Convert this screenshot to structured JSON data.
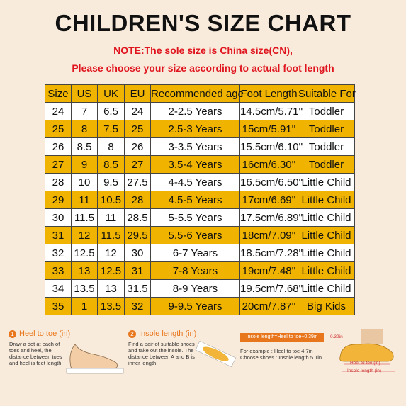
{
  "header": {
    "title": "CHILDREN'S SIZE CHART",
    "notes": [
      "NOTE:The sole size is China size(CN),",
      "Please choose your size according to actual foot length"
    ]
  },
  "table": {
    "columns": [
      "Size",
      "US",
      "UK",
      "EU",
      "Recommended age",
      "Foot Length",
      "Suitable For"
    ],
    "rows": [
      [
        "24",
        "7",
        "6.5",
        "24",
        "2-2.5 Years",
        "14.5cm/5.71''",
        "Toddler"
      ],
      [
        "25",
        "8",
        "7.5",
        "25",
        "2.5-3 Years",
        "15cm/5.91''",
        "Toddler"
      ],
      [
        "26",
        "8.5",
        "8",
        "26",
        "3-3.5 Years",
        "15.5cm/6.10''",
        "Toddler"
      ],
      [
        "27",
        "9",
        "8.5",
        "27",
        "3.5-4 Years",
        "16cm/6.30''",
        "Toddler"
      ],
      [
        "28",
        "10",
        "9.5",
        "27.5",
        "4-4.5 Years",
        "16.5cm/6.50''",
        "Little Child"
      ],
      [
        "29",
        "11",
        "10.5",
        "28",
        "4.5-5 Years",
        "17cm/6.69''",
        "Little Child"
      ],
      [
        "30",
        "11.5",
        "11",
        "28.5",
        "5-5.5 Years",
        "17.5cm/6.89''",
        "Little Child"
      ],
      [
        "31",
        "12",
        "11.5",
        "29.5",
        "5.5-6 Years",
        "18cm/7.09''",
        "Little Child"
      ],
      [
        "32",
        "12.5",
        "12",
        "30",
        "6-7 Years",
        "18.5cm/7.28''",
        "Little Child"
      ],
      [
        "33",
        "13",
        "12.5",
        "31",
        "7-8 Years",
        "19cm/7.48''",
        "Little Child"
      ],
      [
        "34",
        "13.5",
        "13",
        "31.5",
        "8-9 Years",
        "19.5cm/7.68''",
        "Little Child"
      ],
      [
        "35",
        "1",
        "13.5",
        "32",
        "9-9.5 Years",
        "20cm/7.87''",
        "Big Kids"
      ]
    ]
  },
  "guides": [
    {
      "number": "1",
      "title": "Heel to toe (in)",
      "text": "Draw a dot at each of toes and heel, the distance between toes and heel is feet length."
    },
    {
      "number": "2",
      "title": "Insole length (in)",
      "text": "Find a pair of suitable shoes and take out the insole. The distance between A and B is inner length"
    },
    {
      "formula": "Insole length=Heel to toe+0.39in",
      "example": [
        "For example : Heel to toe 4.7in",
        "Choose shoes : Insole length 5.1in"
      ],
      "labels": [
        "0.39in",
        "Heel to toe (in)",
        "Insole length (in)"
      ]
    }
  ]
}
